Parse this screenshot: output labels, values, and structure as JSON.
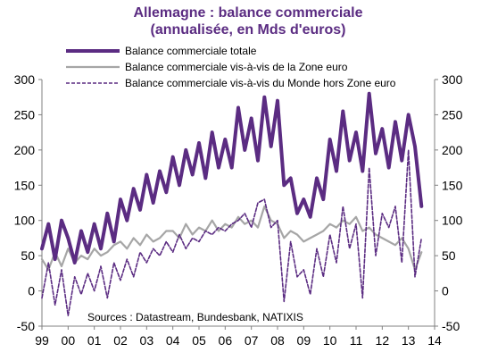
{
  "chart_data": {
    "type": "line",
    "title": "Allemagne : balance commerciale",
    "subtitle": "(annualisée, en Mds d'euros)",
    "source": "Sources : Datastream, Bundesbank, NATIXIS",
    "xlim": [
      1999,
      2014
    ],
    "ylim": [
      -50,
      300
    ],
    "x_ticks": [
      "99",
      "00",
      "01",
      "02",
      "03",
      "04",
      "05",
      "06",
      "07",
      "08",
      "09",
      "10",
      "11",
      "12",
      "13",
      "14"
    ],
    "y_ticks": [
      -50,
      0,
      50,
      100,
      150,
      200,
      250,
      300
    ],
    "legend_position": "top",
    "series": [
      {
        "name": "Balance commerciale totale",
        "color": "#5b2c82",
        "style": "solid-thick",
        "x": [
          1999.0,
          1999.25,
          1999.5,
          1999.75,
          2000.0,
          2000.25,
          2000.5,
          2000.75,
          2001.0,
          2001.25,
          2001.5,
          2001.75,
          2002.0,
          2002.25,
          2002.5,
          2002.75,
          2003.0,
          2003.25,
          2003.5,
          2003.75,
          2004.0,
          2004.25,
          2004.5,
          2004.75,
          2005.0,
          2005.25,
          2005.5,
          2005.75,
          2006.0,
          2006.25,
          2006.5,
          2006.75,
          2007.0,
          2007.25,
          2007.5,
          2007.75,
          2008.0,
          2008.25,
          2008.5,
          2008.75,
          2009.0,
          2009.25,
          2009.5,
          2009.75,
          2010.0,
          2010.25,
          2010.5,
          2010.75,
          2011.0,
          2011.25,
          2011.5,
          2011.75,
          2012.0,
          2012.25,
          2012.5,
          2012.75,
          2013.0,
          2013.25,
          2013.5
        ],
        "values": [
          60,
          95,
          45,
          100,
          75,
          40,
          85,
          55,
          95,
          60,
          110,
          70,
          130,
          100,
          145,
          115,
          165,
          125,
          170,
          140,
          190,
          150,
          200,
          165,
          210,
          160,
          225,
          175,
          215,
          175,
          260,
          200,
          245,
          185,
          275,
          205,
          270,
          150,
          160,
          110,
          130,
          105,
          160,
          130,
          215,
          170,
          255,
          185,
          225,
          170,
          280,
          195,
          230,
          175,
          240,
          185,
          250,
          205,
          120
        ]
      },
      {
        "name": "Balance commerciale vis-à-vis de la Zone euro",
        "color": "#a6a6a6",
        "style": "solid",
        "x": [
          1999.0,
          1999.25,
          1999.5,
          1999.75,
          2000.0,
          2000.25,
          2000.5,
          2000.75,
          2001.0,
          2001.25,
          2001.5,
          2001.75,
          2002.0,
          2002.25,
          2002.5,
          2002.75,
          2003.0,
          2003.25,
          2003.5,
          2003.75,
          2004.0,
          2004.25,
          2004.5,
          2004.75,
          2005.0,
          2005.25,
          2005.5,
          2005.75,
          2006.0,
          2006.25,
          2006.5,
          2006.75,
          2007.0,
          2007.25,
          2007.5,
          2007.75,
          2008.0,
          2008.25,
          2008.5,
          2008.75,
          2009.0,
          2009.25,
          2009.5,
          2009.75,
          2010.0,
          2010.25,
          2010.5,
          2010.75,
          2011.0,
          2011.25,
          2011.5,
          2011.75,
          2012.0,
          2012.25,
          2012.5,
          2012.75,
          2013.0,
          2013.25,
          2013.5
        ],
        "values": [
          45,
          30,
          55,
          35,
          60,
          40,
          50,
          45,
          60,
          50,
          55,
          65,
          70,
          60,
          75,
          65,
          80,
          70,
          75,
          85,
          85,
          75,
          95,
          80,
          90,
          85,
          100,
          85,
          95,
          90,
          105,
          95,
          100,
          90,
          120,
          100,
          95,
          75,
          85,
          80,
          70,
          75,
          80,
          85,
          95,
          90,
          100,
          95,
          105,
          85,
          90,
          80,
          75,
          70,
          65,
          75,
          60,
          30,
          55
        ]
      },
      {
        "name": "Balance commerciale vis-à-vis du Monde hors Zone euro",
        "color": "#5b2c82",
        "style": "dashed",
        "x": [
          1999.0,
          1999.25,
          1999.5,
          1999.75,
          2000.0,
          2000.25,
          2000.5,
          2000.75,
          2001.0,
          2001.25,
          2001.5,
          2001.75,
          2002.0,
          2002.25,
          2002.5,
          2002.75,
          2003.0,
          2003.25,
          2003.5,
          2003.75,
          2004.0,
          2004.25,
          2004.5,
          2004.75,
          2005.0,
          2005.25,
          2005.5,
          2005.75,
          2006.0,
          2006.25,
          2006.5,
          2006.75,
          2007.0,
          2007.25,
          2007.5,
          2007.75,
          2008.0,
          2008.25,
          2008.5,
          2008.75,
          2009.0,
          2009.25,
          2009.5,
          2009.75,
          2010.0,
          2010.25,
          2010.5,
          2010.75,
          2011.0,
          2011.25,
          2011.5,
          2011.75,
          2012.0,
          2012.25,
          2012.5,
          2012.75,
          2013.0,
          2013.25,
          2013.5
        ],
        "values": [
          -10,
          40,
          -20,
          30,
          -35,
          20,
          -5,
          25,
          0,
          35,
          -10,
          40,
          15,
          45,
          20,
          55,
          40,
          60,
          50,
          70,
          55,
          80,
          60,
          75,
          70,
          85,
          80,
          90,
          85,
          95,
          100,
          110,
          90,
          125,
          130,
          90,
          100,
          -15,
          70,
          20,
          30,
          -5,
          60,
          20,
          80,
          40,
          120,
          60,
          95,
          -10,
          175,
          50,
          110,
          90,
          120,
          40,
          200,
          20,
          75
        ]
      }
    ]
  }
}
